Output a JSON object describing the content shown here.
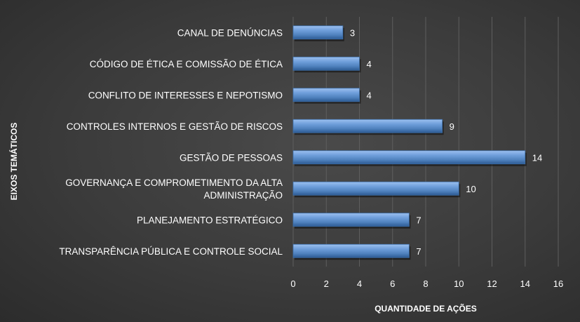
{
  "chart_data": {
    "type": "bar",
    "orientation": "horizontal",
    "title": "",
    "xlabel": "QUANTIDADE DE AÇÕES",
    "ylabel": "EIXOS TEMÁTICOS",
    "categories": [
      [
        "CANAL DE DENÚNCIAS"
      ],
      [
        "CÓDIGO DE ÉTICA E COMISSÃO DE ÉTICA"
      ],
      [
        "CONFLITO DE INTERESSES E NEPOTISMO"
      ],
      [
        "CONTROLES INTERNOS E GESTÃO DE RISCOS"
      ],
      [
        "GESTÃO DE PESSOAS"
      ],
      [
        "GOVERNANÇA E COMPROMETIMENTO DA ALTA",
        "ADMINISTRAÇÃO"
      ],
      [
        "PLANEJAMENTO ESTRATÉGICO"
      ],
      [
        "TRANSPARÊNCIA PÚBLICA E CONTROLE SOCIAL"
      ]
    ],
    "values": [
      3,
      4,
      4,
      9,
      14,
      10,
      7,
      7
    ],
    "xlim": [
      0,
      16
    ],
    "xticks": [
      0,
      2,
      4,
      6,
      8,
      10,
      12,
      14,
      16
    ],
    "grid": "vertical",
    "data_labels": true,
    "legend": "none",
    "colors": {
      "bar": "#4f81bd",
      "bar_light": "#9cc0ef",
      "bar_dark": "#2c5a93",
      "text": "#ffffff",
      "grid": "#5e5e5e"
    }
  }
}
